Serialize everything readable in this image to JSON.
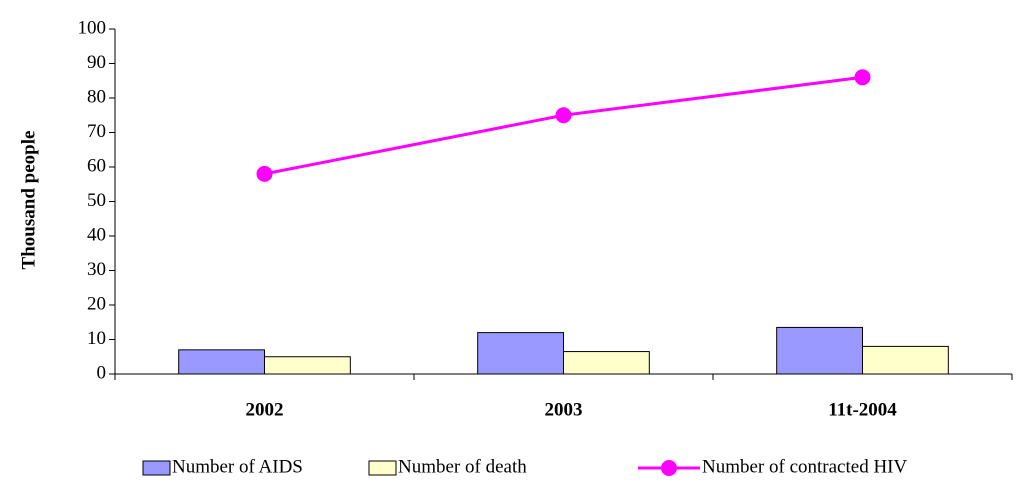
{
  "chart_data": {
    "type": "bar",
    "y_label": "Thousand people",
    "categories": [
      "2002",
      "2003",
      "11t-2004"
    ],
    "series": [
      {
        "name": "Number of AIDS",
        "color": "#9999ff",
        "values": [
          7,
          12,
          13.5
        ]
      },
      {
        "name": "Number of death",
        "color": "#ffffcc",
        "values": [
          5,
          6.5,
          8
        ]
      },
      {
        "name": "Number of contracted HIV",
        "color": "#ff00ff",
        "type": "line",
        "values": [
          58,
          75,
          86
        ]
      }
    ],
    "ylim": [
      0,
      100
    ],
    "yticks": [
      0,
      10,
      20,
      30,
      40,
      50,
      60,
      70,
      80,
      90,
      100
    ],
    "grid": false
  }
}
